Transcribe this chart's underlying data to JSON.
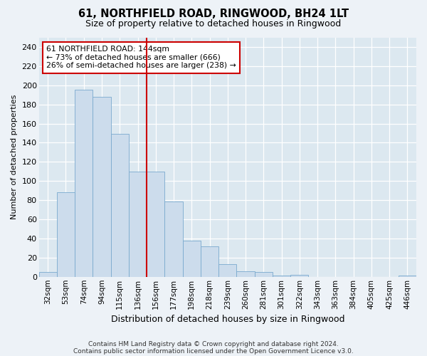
{
  "title": "61, NORTHFIELD ROAD, RINGWOOD, BH24 1LT",
  "subtitle": "Size of property relative to detached houses in Ringwood",
  "xlabel": "Distribution of detached houses by size in Ringwood",
  "ylabel": "Number of detached properties",
  "categories": [
    "32sqm",
    "53sqm",
    "74sqm",
    "94sqm",
    "115sqm",
    "136sqm",
    "156sqm",
    "177sqm",
    "198sqm",
    "218sqm",
    "239sqm",
    "260sqm",
    "281sqm",
    "301sqm",
    "322sqm",
    "343sqm",
    "363sqm",
    "384sqm",
    "405sqm",
    "425sqm",
    "446sqm"
  ],
  "values": [
    5,
    88,
    195,
    188,
    149,
    110,
    110,
    79,
    38,
    32,
    13,
    6,
    5,
    1,
    2,
    0,
    0,
    0,
    0,
    0,
    1
  ],
  "bar_color": "#ccdcec",
  "bar_edge_color": "#7aaace",
  "vline_color": "#cc0000",
  "annotation_text": "61 NORTHFIELD ROAD: 144sqm\n← 73% of detached houses are smaller (666)\n26% of semi-detached houses are larger (238) →",
  "annotation_box_color": "#ffffff",
  "annotation_box_edge": "#cc0000",
  "ylim": [
    0,
    250
  ],
  "yticks": [
    0,
    20,
    40,
    60,
    80,
    100,
    120,
    140,
    160,
    180,
    200,
    220,
    240
  ],
  "bg_color": "#dce8f0",
  "fig_bg_color": "#edf2f7",
  "grid_color": "#ffffff",
  "footer1": "Contains HM Land Registry data © Crown copyright and database right 2024.",
  "footer2": "Contains public sector information licensed under the Open Government Licence v3.0."
}
